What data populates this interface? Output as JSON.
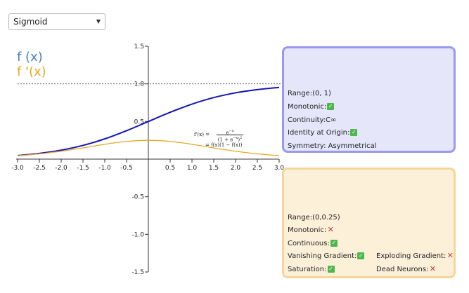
{
  "dropdown": {
    "selected": "Sigmoid"
  },
  "legend": {
    "f": "f (x)",
    "fprime": "f '(x)"
  },
  "formula": {
    "line1_lhs": "f'(x) =",
    "line1_num": "e",
    "line1_num_sup": "−x",
    "line1_den": "(1 + e",
    "line1_den_sup": "−x",
    "line1_den_tail": ")",
    "line1_den_sq": "2",
    "line2": "= f(x)(1 − f(x))"
  },
  "function_props": {
    "range": "Range:(0, 1)",
    "monotonic": "Monotonic:",
    "continuity": "Continuity:C∞",
    "identity": "Identity at Origin:",
    "symmetry": "Symmetry: Asymmetrical"
  },
  "derivative_props": {
    "range": "Range:(0,0.25)",
    "monotonic": "Monotonic:",
    "continuous": "Continuous:",
    "vanishing": "Vanishing Gradient:",
    "exploding": "Exploding Gradient:",
    "saturation": "Saturation:",
    "dead": "Dead Neurons:"
  },
  "marks": {
    "check": "✓",
    "cross": "✕"
  },
  "chart_data": {
    "type": "line",
    "xlim": [
      -3.0,
      3.0
    ],
    "ylim": [
      -1.5,
      1.5
    ],
    "x_ticks": [
      "-3.0",
      "-2.5",
      "-2.0",
      "-1.5",
      "-1.0",
      "-0.5",
      "0.5",
      "1.0",
      "1.5",
      "2.0",
      "2.5",
      "3.0"
    ],
    "y_ticks": [
      "1.5",
      "1.0",
      "0.5",
      "-0.5",
      "-1.0",
      "-1.5"
    ],
    "asymptote_y": 1.0,
    "series": [
      {
        "name": "f (x)",
        "color": "#1515b5",
        "x": [
          -3.0,
          -2.5,
          -2.0,
          -1.5,
          -1.0,
          -0.5,
          0.0,
          0.5,
          1.0,
          1.5,
          2.0,
          2.5,
          3.0
        ],
        "y": [
          0.047,
          0.076,
          0.119,
          0.182,
          0.269,
          0.378,
          0.5,
          0.622,
          0.731,
          0.818,
          0.881,
          0.924,
          0.953
        ]
      },
      {
        "name": "f '(x)",
        "color": "#e5a823",
        "x": [
          -3.0,
          -2.5,
          -2.0,
          -1.5,
          -1.0,
          -0.5,
          0.0,
          0.5,
          1.0,
          1.5,
          2.0,
          2.5,
          3.0
        ],
        "y": [
          0.045,
          0.07,
          0.105,
          0.149,
          0.197,
          0.235,
          0.25,
          0.235,
          0.197,
          0.149,
          0.105,
          0.07,
          0.045
        ]
      }
    ]
  }
}
